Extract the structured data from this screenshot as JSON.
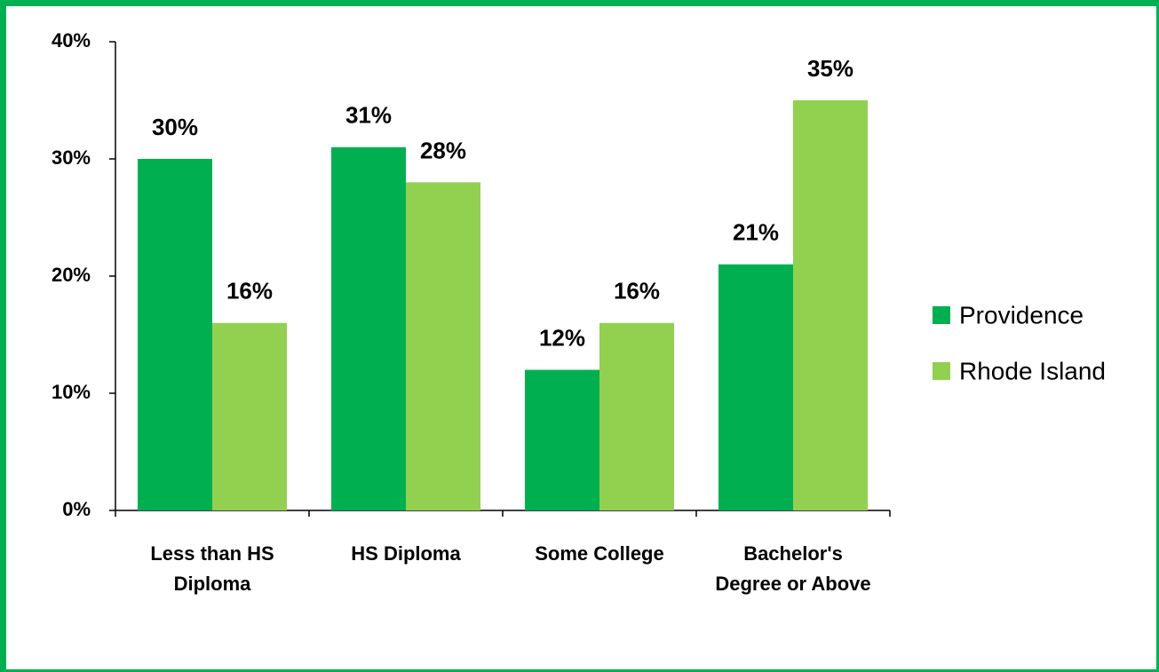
{
  "chart_data": {
    "type": "bar",
    "categories": [
      "Less than HS Diploma",
      "HS Diploma",
      "Some College",
      "Bachelor's Degree or Above"
    ],
    "series": [
      {
        "name": "Providence",
        "color": "#00b050",
        "values": [
          30,
          31,
          12,
          21
        ],
        "value_labels": [
          "30%",
          "31%",
          "12%",
          "21%"
        ]
      },
      {
        "name": "Rhode Island",
        "color": "#92d050",
        "values": [
          16,
          28,
          16,
          35
        ],
        "value_labels": [
          "16%",
          "28%",
          "16%",
          "35%"
        ]
      }
    ],
    "ylim": [
      0,
      40
    ],
    "yticks": [
      {
        "value": 0,
        "label": "0%"
      },
      {
        "value": 10,
        "label": "10%"
      },
      {
        "value": 20,
        "label": "20%"
      },
      {
        "value": 30,
        "label": "30%"
      },
      {
        "value": 40,
        "label": "40%"
      }
    ],
    "grid": false,
    "legend": "right"
  }
}
